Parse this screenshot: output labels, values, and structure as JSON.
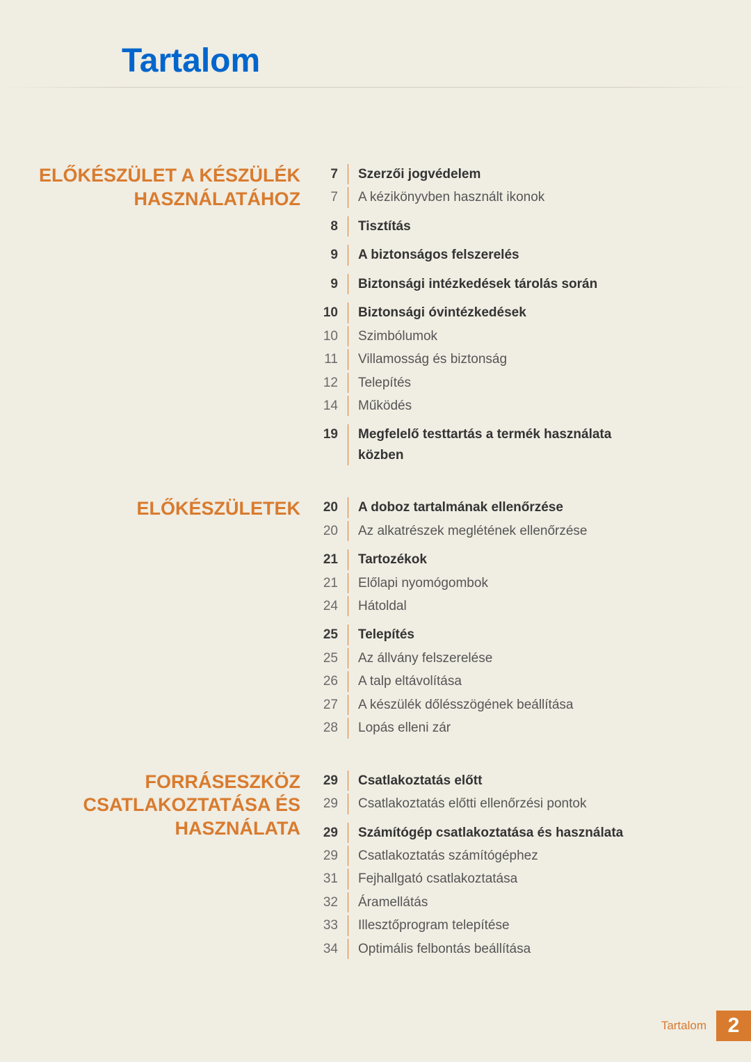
{
  "page_title": "Tartalom",
  "footer": {
    "label": "Tartalom",
    "page": "2"
  },
  "colors": {
    "background": "#f0ede3",
    "title": "#0066cc",
    "accent": "#d87b2e",
    "text": "#555",
    "text_bold": "#333",
    "page_num": "#6a6a6a"
  },
  "sections": [
    {
      "heading": "ELŐKÉSZÜLET A KÉSZÜLÉK HASZNÁLATÁHOZ",
      "entries": [
        {
          "page": "7",
          "text": "Szerzői jogvédelem",
          "bold": true
        },
        {
          "page": "7",
          "text": "A kézikönyvben használt ikonok"
        },
        {
          "page": "8",
          "text": "Tisztítás",
          "bold": true,
          "gap": true
        },
        {
          "page": "9",
          "text": "A biztonságos felszerelés",
          "bold": true,
          "gap": true
        },
        {
          "page": "9",
          "text": "Biztonsági intézkedések tárolás során",
          "bold": true,
          "gap": true
        },
        {
          "page": "10",
          "text": "Biztonsági óvintézkedések",
          "bold": true,
          "gap": true
        },
        {
          "page": "10",
          "text": "Szimbólumok"
        },
        {
          "page": "11",
          "text": "Villamosság és biztonság"
        },
        {
          "page": "12",
          "text": "Telepítés"
        },
        {
          "page": "14",
          "text": "Működés"
        },
        {
          "page": "19",
          "text": "Megfelelő testtartás a termék használata közben",
          "bold": true,
          "gap": true
        }
      ]
    },
    {
      "heading": "ELŐKÉSZÜLETEK",
      "entries": [
        {
          "page": "20",
          "text": "A doboz tartalmának ellenőrzése",
          "bold": true
        },
        {
          "page": "20",
          "text": "Az alkatrészek meglétének ellenőrzése"
        },
        {
          "page": "21",
          "text": "Tartozékok",
          "bold": true,
          "gap": true
        },
        {
          "page": "21",
          "text": "Előlapi nyomógombok"
        },
        {
          "page": "24",
          "text": "Hátoldal"
        },
        {
          "page": "25",
          "text": "Telepítés",
          "bold": true,
          "gap": true
        },
        {
          "page": "25",
          "text": "Az állvány felszerelése"
        },
        {
          "page": "26",
          "text": "A talp eltávolítása"
        },
        {
          "page": "27",
          "text": "A készülék dőlésszögének beállítása"
        },
        {
          "page": "28",
          "text": "Lopás elleni zár"
        }
      ]
    },
    {
      "heading": "FORRÁSESZKÖZ CSATLAKOZTATÁSA ÉS HASZNÁLATA",
      "entries": [
        {
          "page": "29",
          "text": "Csatlakoztatás előtt",
          "bold": true
        },
        {
          "page": "29",
          "text": "Csatlakoztatás előtti ellenőrzési pontok"
        },
        {
          "page": "29",
          "text": "Számítógép csatlakoztatása és használata",
          "bold": true,
          "gap": true
        },
        {
          "page": "29",
          "text": "Csatlakoztatás számítógéphez"
        },
        {
          "page": "31",
          "text": "Fejhallgató csatlakoztatása"
        },
        {
          "page": "32",
          "text": "Áramellátás"
        },
        {
          "page": "33",
          "text": "Illesztőprogram telepítése"
        },
        {
          "page": "34",
          "text": "Optimális felbontás beállítása"
        }
      ]
    }
  ]
}
